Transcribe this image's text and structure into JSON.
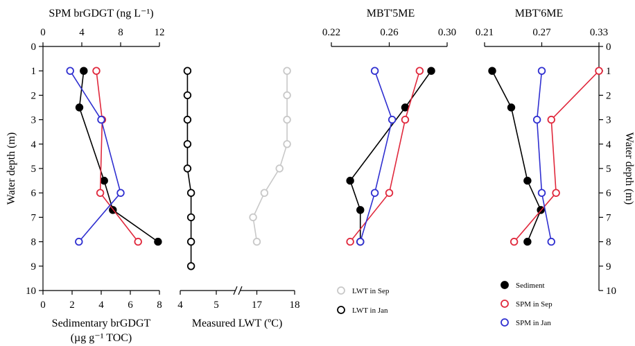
{
  "colors": {
    "sediment": "#000000",
    "spm_sep": "#e0283c",
    "spm_jan": "#2f2fd0",
    "lwt_sep": "#c8c8c8",
    "lwt_jan": "#000000"
  },
  "chart_data": [
    {
      "type": "line",
      "panel": "brGDGT",
      "y_axis": {
        "label": "Water depth (m)",
        "lim": [
          0,
          10
        ],
        "ticks": [
          "0",
          "1",
          "2",
          "3",
          "4",
          "5",
          "6",
          "7",
          "8",
          "9",
          "10"
        ],
        "inverted": true
      },
      "x_axes": [
        {
          "position": "top",
          "label": "SPM brGDGT  (ng L⁻¹)",
          "lim": [
            0,
            12
          ],
          "ticks": [
            "0",
            "4",
            "8",
            "12"
          ]
        },
        {
          "position": "bottom",
          "label_lines": [
            "Sedimentary brGDGT",
            "(µg g⁻¹ TOC)"
          ],
          "lim": [
            0,
            8
          ],
          "ticks": [
            "0",
            "2",
            "4",
            "6",
            "8"
          ]
        }
      ],
      "series": [
        {
          "key": "sediment",
          "axis": "bottom",
          "marker": "filled",
          "x": [
            2.8,
            2.5,
            4.2,
            4.8,
            7.9
          ],
          "y": [
            1,
            2.5,
            5.5,
            6.7,
            8
          ]
        },
        {
          "key": "spm_sep",
          "axis": "top",
          "marker": "open",
          "x": [
            5.5,
            6.1,
            5.9,
            9.8
          ],
          "y": [
            1,
            3,
            6,
            8
          ]
        },
        {
          "key": "spm_jan",
          "axis": "top",
          "marker": "open",
          "x": [
            2.8,
            6.0,
            8.0,
            3.7
          ],
          "y": [
            1,
            3,
            6,
            8
          ]
        }
      ]
    },
    {
      "type": "line",
      "panel": "LWT",
      "x_axis": {
        "label": "Measured LWT (ºC)",
        "ticks": [
          "4",
          "5",
          "17",
          "18"
        ],
        "break_between": [
          "5",
          "17"
        ]
      },
      "series": [
        {
          "key": "lwt_jan",
          "marker": "open",
          "x": [
            4.2,
            4.2,
            4.2,
            4.2,
            4.2,
            4.3,
            4.3,
            4.3,
            4.3
          ],
          "y": [
            1,
            2,
            3,
            4,
            5,
            6,
            7,
            8,
            9
          ]
        },
        {
          "key": "lwt_sep",
          "marker": "open",
          "x": [
            17.8,
            17.8,
            17.8,
            17.8,
            17.6,
            17.2,
            16.9,
            17.0
          ],
          "y": [
            1,
            2,
            3,
            4,
            5,
            6,
            7,
            8
          ]
        }
      ],
      "legend": [
        {
          "key": "lwt_sep",
          "label": "LWT in Sep"
        },
        {
          "key": "lwt_jan",
          "label": "LWT in Jan"
        }
      ]
    },
    {
      "type": "line",
      "panel": "MBT5ME",
      "x_axis": {
        "position": "top",
        "label": "MBT'5ME",
        "lim": [
          0.22,
          0.3
        ],
        "ticks": [
          "0.22",
          "0.26",
          "0.30"
        ]
      },
      "series": [
        {
          "key": "sediment",
          "marker": "filled",
          "x": [
            0.289,
            0.271,
            0.233,
            0.24,
            0.24
          ],
          "y": [
            1,
            2.5,
            5.5,
            6.7,
            8
          ]
        },
        {
          "key": "spm_sep",
          "marker": "open",
          "x": [
            0.281,
            0.271,
            0.26,
            0.233
          ],
          "y": [
            1,
            3,
            6,
            8
          ]
        },
        {
          "key": "spm_jan",
          "marker": "open",
          "x": [
            0.25,
            0.262,
            0.25,
            0.24
          ],
          "y": [
            1,
            3,
            6,
            8
          ]
        }
      ]
    },
    {
      "type": "line",
      "panel": "MBT6ME",
      "x_axis": {
        "position": "top",
        "label": "MBT'6ME",
        "lim": [
          0.21,
          0.33
        ],
        "ticks": [
          "0.21",
          "0.27",
          "0.33"
        ]
      },
      "y_axis_right": {
        "label": "Water depth (m)",
        "lim": [
          0,
          10
        ],
        "ticks": [
          "0",
          "1",
          "2",
          "3",
          "4",
          "5",
          "6",
          "7",
          "8",
          "9",
          "10"
        ],
        "inverted": true
      },
      "series": [
        {
          "key": "sediment",
          "marker": "filled",
          "x": [
            0.218,
            0.238,
            0.255,
            0.269,
            0.255
          ],
          "y": [
            1,
            2.5,
            5.5,
            6.7,
            8
          ]
        },
        {
          "key": "spm_sep",
          "marker": "open",
          "x": [
            0.33,
            0.28,
            0.285,
            0.241
          ],
          "y": [
            1,
            3,
            6,
            8
          ]
        },
        {
          "key": "spm_jan",
          "marker": "open",
          "x": [
            0.27,
            0.265,
            0.27,
            0.28
          ],
          "y": [
            1,
            3,
            6,
            8
          ]
        }
      ],
      "legend": [
        {
          "key": "sediment",
          "label": "Sediment"
        },
        {
          "key": "spm_sep",
          "label": "SPM in Sep"
        },
        {
          "key": "spm_jan",
          "label": "SPM in Jan"
        }
      ]
    }
  ]
}
